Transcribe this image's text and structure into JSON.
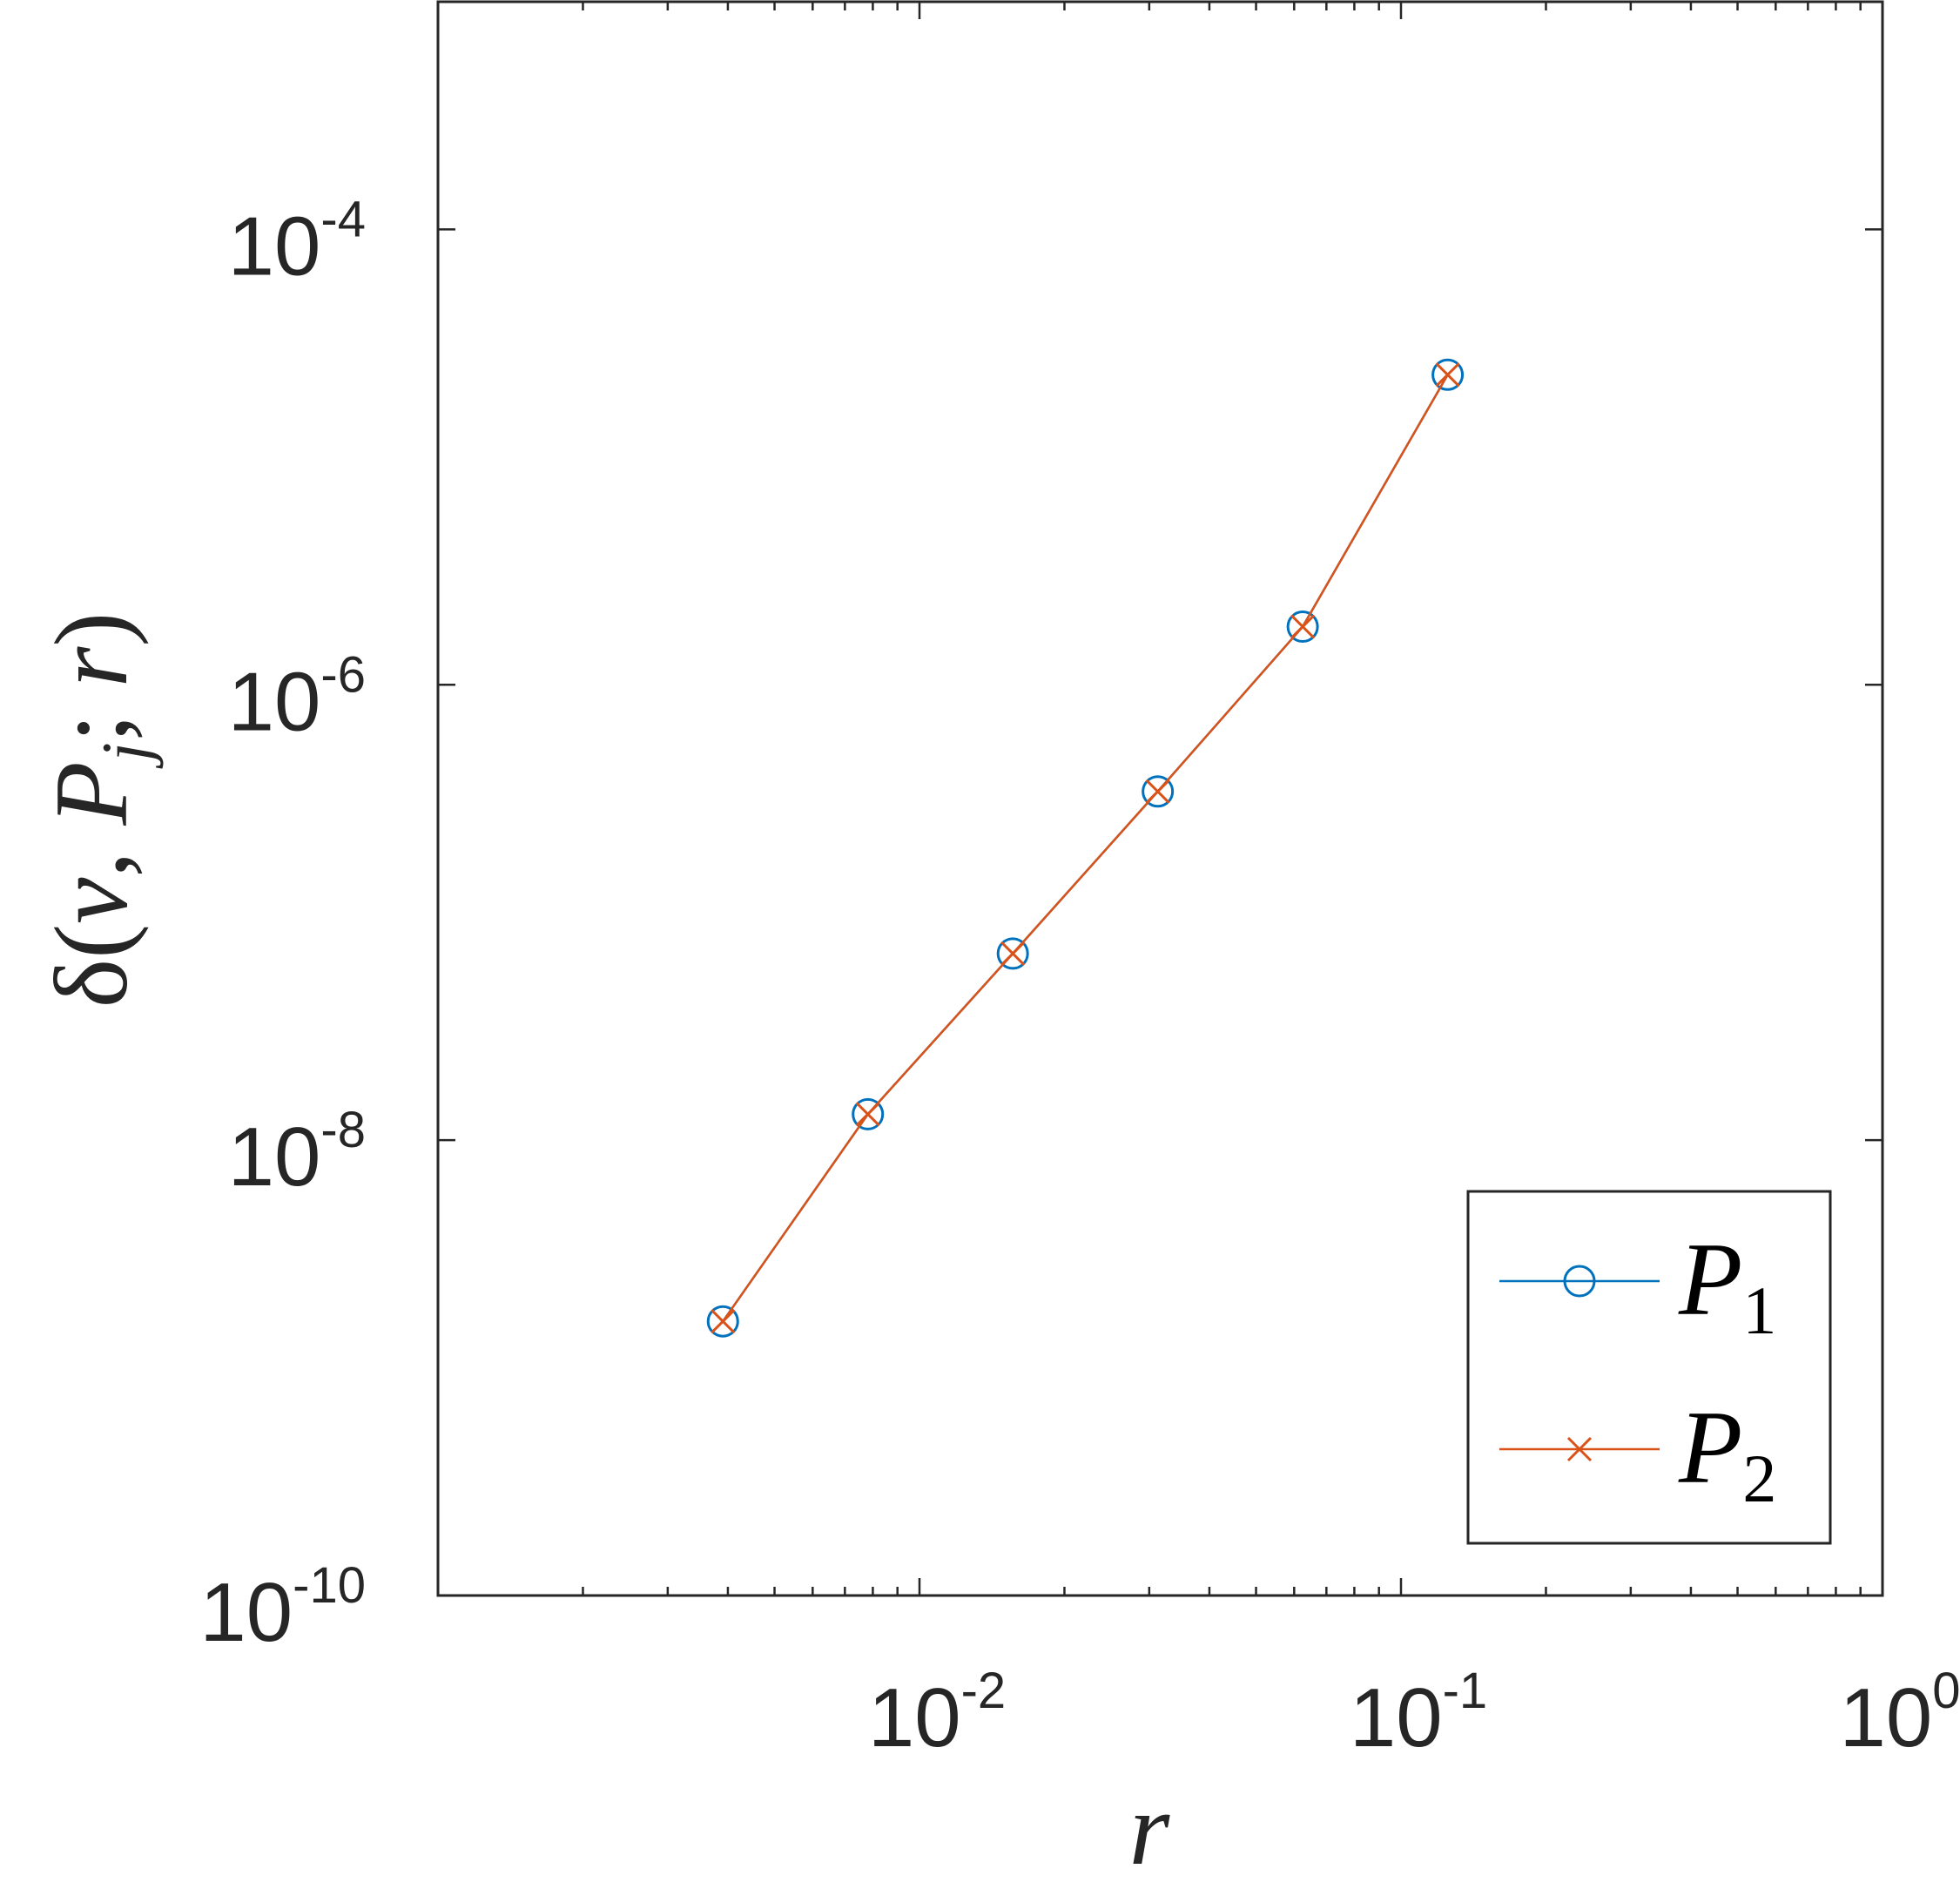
{
  "chart_data": {
    "type": "line",
    "scale": {
      "x": "log",
      "y": "log"
    },
    "xlim": [
      0.001,
      1
    ],
    "ylim": [
      1e-10,
      0.001
    ],
    "xticks": [
      {
        "value": 0.01,
        "base": "10",
        "exp": "-2"
      },
      {
        "value": 0.1,
        "base": "10",
        "exp": "-1"
      },
      {
        "value": 1,
        "base": "10",
        "exp": "0"
      }
    ],
    "yticks": [
      {
        "value": 1e-10,
        "base": "10",
        "exp": "-10"
      },
      {
        "value": 1e-08,
        "base": "10",
        "exp": "-8"
      },
      {
        "value": 1e-06,
        "base": "10",
        "exp": "-6"
      },
      {
        "value": 0.0001,
        "base": "10",
        "exp": "-4"
      }
    ],
    "xlabel": "r",
    "ylabel": "δ(v, P_j; r)",
    "grid": false,
    "box": true,
    "legend": {
      "position": "bottom-right"
    },
    "series": [
      {
        "name": "P_1",
        "color": "#0072BD",
        "marker": "circle",
        "x": [
          0.00390625,
          0.0078125,
          0.015625,
          0.03125,
          0.0625,
          0.125
        ],
        "y": [
          1.6e-09,
          1.3e-08,
          6.6e-08,
          3.4e-07,
          1.8e-06,
          2.3e-05
        ]
      },
      {
        "name": "P_2",
        "color": "#D95319",
        "marker": "x",
        "x": [
          0.00390625,
          0.0078125,
          0.015625,
          0.03125,
          0.0625,
          0.125
        ],
        "y": [
          1.6e-09,
          1.3e-08,
          6.6e-08,
          3.4e-07,
          1.8e-06,
          2.3e-05
        ]
      }
    ]
  }
}
